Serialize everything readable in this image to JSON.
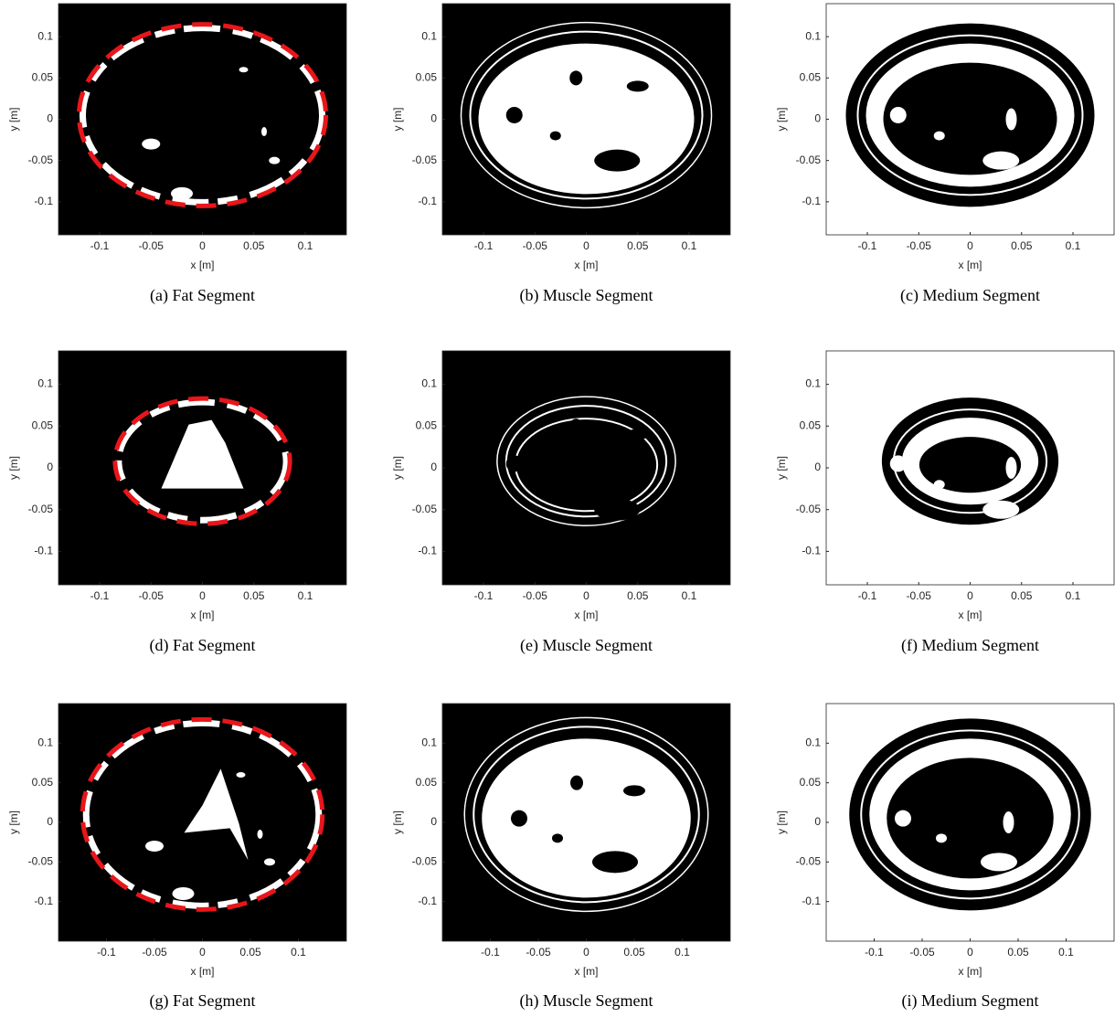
{
  "chart_data": [
    {
      "type": "image",
      "caption": "(a) Fat Segment",
      "xlabel": "x [m]",
      "ylabel": "y [m]",
      "xlim": [
        -0.14,
        0.14
      ],
      "ylim": [
        -0.14,
        0.14
      ],
      "xticks": [
        -0.1,
        -0.05,
        0,
        0.05,
        0.1
      ],
      "yticks": [
        -0.1,
        -0.05,
        0,
        0.05,
        0.1
      ],
      "background": "#000000",
      "outline_color": "#e8161b"
    },
    {
      "type": "image",
      "caption": "(b) Muscle Segment",
      "xlabel": "x [m]",
      "ylabel": "y [m]",
      "xlim": [
        -0.14,
        0.14
      ],
      "ylim": [
        -0.14,
        0.14
      ],
      "xticks": [
        -0.1,
        -0.05,
        0,
        0.05,
        0.1
      ],
      "yticks": [
        -0.1,
        -0.05,
        0,
        0.05,
        0.1
      ],
      "background": "#000000"
    },
    {
      "type": "image",
      "caption": "(c) Medium Segment",
      "xlabel": "x [m]",
      "ylabel": "y [m]",
      "xlim": [
        -0.14,
        0.14
      ],
      "ylim": [
        -0.14,
        0.14
      ],
      "xticks": [
        -0.1,
        -0.05,
        0,
        0.05,
        0.1
      ],
      "yticks": [
        -0.1,
        -0.05,
        0,
        0.05,
        0.1
      ],
      "background": "#ffffff"
    },
    {
      "type": "image",
      "caption": "(d) Fat Segment",
      "xlabel": "x [m]",
      "ylabel": "y [m]",
      "xlim": [
        -0.14,
        0.14
      ],
      "ylim": [
        -0.14,
        0.14
      ],
      "xticks": [
        -0.1,
        -0.05,
        0,
        0.05,
        0.1
      ],
      "yticks": [
        -0.1,
        -0.05,
        0,
        0.05,
        0.1
      ],
      "background": "#000000",
      "outline_color": "#e8161b"
    },
    {
      "type": "image",
      "caption": "(e) Muscle Segment",
      "xlabel": "x [m]",
      "ylabel": "y [m]",
      "xlim": [
        -0.14,
        0.14
      ],
      "ylim": [
        -0.14,
        0.14
      ],
      "xticks": [
        -0.1,
        -0.05,
        0,
        0.05,
        0.1
      ],
      "yticks": [
        -0.1,
        -0.05,
        0,
        0.05,
        0.1
      ],
      "background": "#000000"
    },
    {
      "type": "image",
      "caption": "(f) Medium Segment",
      "xlabel": "x [m]",
      "ylabel": "y [m]",
      "xlim": [
        -0.14,
        0.14
      ],
      "ylim": [
        -0.14,
        0.14
      ],
      "xticks": [
        -0.1,
        -0.05,
        0,
        0.05,
        0.1
      ],
      "yticks": [
        -0.1,
        -0.05,
        0,
        0.05,
        0.1
      ],
      "background": "#ffffff"
    },
    {
      "type": "image",
      "caption": "(g) Fat Segment",
      "xlabel": "x [m]",
      "ylabel": "y [m]",
      "xlim": [
        -0.15,
        0.15
      ],
      "ylim": [
        -0.15,
        0.15
      ],
      "xticks": [
        -0.1,
        -0.05,
        0,
        0.05,
        0.1
      ],
      "yticks": [
        -0.1,
        -0.05,
        0,
        0.05,
        0.1
      ],
      "background": "#000000",
      "outline_color": "#e8161b"
    },
    {
      "type": "image",
      "caption": "(h) Muscle Segment",
      "xlabel": "x [m]",
      "ylabel": "y [m]",
      "xlim": [
        -0.15,
        0.15
      ],
      "ylim": [
        -0.15,
        0.15
      ],
      "xticks": [
        -0.1,
        -0.05,
        0,
        0.05,
        0.1
      ],
      "yticks": [
        -0.1,
        -0.05,
        0,
        0.05,
        0.1
      ],
      "background": "#000000"
    },
    {
      "type": "image",
      "caption": "(i) Medium Segment",
      "xlabel": "x [m]",
      "ylabel": "y [m]",
      "xlim": [
        -0.15,
        0.15
      ],
      "ylim": [
        -0.15,
        0.15
      ],
      "xticks": [
        -0.1,
        -0.05,
        0,
        0.05,
        0.1
      ],
      "yticks": [
        -0.1,
        -0.05,
        0,
        0.05,
        0.1
      ],
      "background": "#ffffff"
    }
  ]
}
